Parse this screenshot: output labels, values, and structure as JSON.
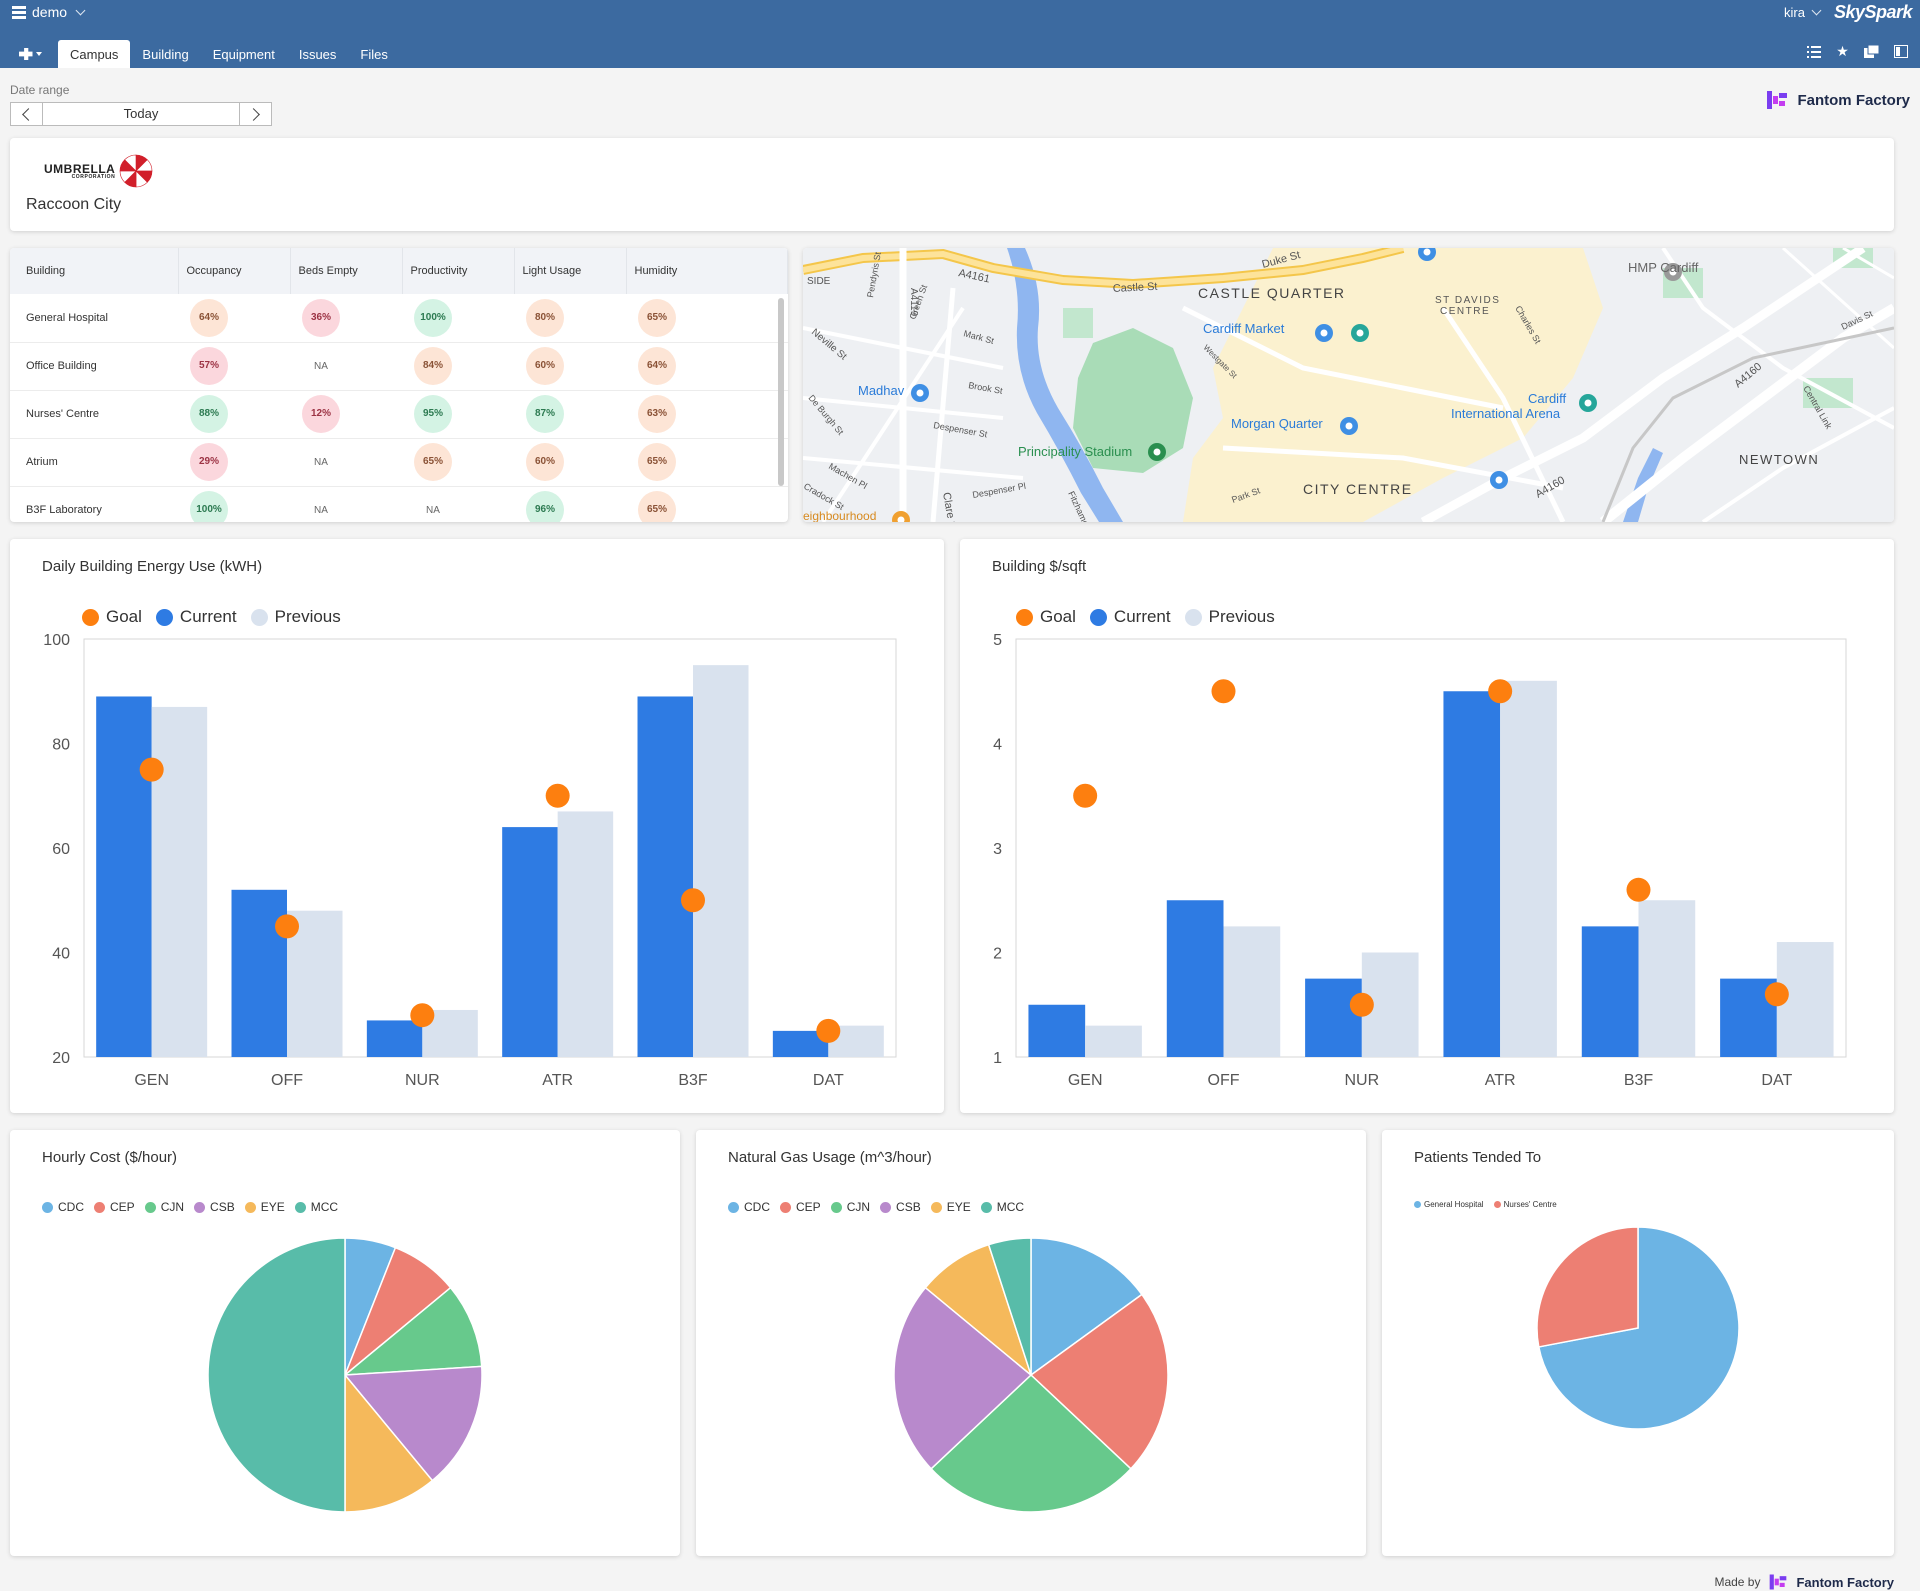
{
  "topbar": {
    "project": "demo",
    "user": "kira",
    "brand": "SkySpark",
    "tabs": [
      "Campus",
      "Building",
      "Equipment",
      "Issues",
      "Files"
    ]
  },
  "date_range": {
    "label": "Date range",
    "value": "Today"
  },
  "fantom_logo": "Fantom Factory",
  "header": {
    "company": "UMBRELLA",
    "company_sub": "CORPORATION",
    "site": "Raccoon City"
  },
  "table": {
    "columns": [
      "Building",
      "Occupancy",
      "Beds Empty",
      "Productivity",
      "Light Usage",
      "Humidity"
    ],
    "rows": [
      {
        "name": "General Hospital",
        "cells": [
          {
            "v": "64%",
            "s": "mid"
          },
          {
            "v": "36%",
            "s": "bad"
          },
          {
            "v": "100%",
            "s": "ok"
          },
          {
            "v": "80%",
            "s": "mid"
          },
          {
            "v": "65%",
            "s": "mid"
          }
        ]
      },
      {
        "name": "Office Building",
        "cells": [
          {
            "v": "57%",
            "s": "bad"
          },
          {
            "v": "NA",
            "s": "na"
          },
          {
            "v": "84%",
            "s": "mid"
          },
          {
            "v": "60%",
            "s": "mid"
          },
          {
            "v": "64%",
            "s": "mid"
          }
        ]
      },
      {
        "name": "Nurses' Centre",
        "cells": [
          {
            "v": "88%",
            "s": "ok"
          },
          {
            "v": "12%",
            "s": "bad"
          },
          {
            "v": "95%",
            "s": "ok"
          },
          {
            "v": "87%",
            "s": "ok"
          },
          {
            "v": "63%",
            "s": "mid"
          }
        ]
      },
      {
        "name": "Atrium",
        "cells": [
          {
            "v": "29%",
            "s": "bad"
          },
          {
            "v": "NA",
            "s": "na"
          },
          {
            "v": "65%",
            "s": "mid"
          },
          {
            "v": "60%",
            "s": "mid"
          },
          {
            "v": "65%",
            "s": "mid"
          }
        ]
      },
      {
        "name": "B3F Laboratory",
        "cells": [
          {
            "v": "100%",
            "s": "ok"
          },
          {
            "v": "NA",
            "s": "na"
          },
          {
            "v": "NA",
            "s": "na"
          },
          {
            "v": "96%",
            "s": "ok"
          },
          {
            "v": "65%",
            "s": "mid"
          }
        ]
      }
    ]
  },
  "map": {
    "labels": [
      "Castle St",
      "Duke St",
      "A4161",
      "A4119",
      "CASTLE QUARTER",
      "Cardiff Market",
      "ST DAVIDS",
      "CENTRE",
      "HMP Cardiff",
      "Madhav",
      "Morgan Quarter",
      "Cardiff",
      "International Arena",
      "Principality Stadium",
      "CITY CENTRE",
      "NEWTOWN",
      "A4160",
      "A4160",
      "Neville St",
      "Mark St",
      "Brook St",
      "Despenser St",
      "Westgate St",
      "Central Link",
      "Clare St",
      "De Burgh St",
      "Machen Pl",
      "Cradock St",
      "Despenser Pl",
      "Fitzhamon",
      "Park St",
      "Charles St",
      "Davis St",
      "Green St",
      "Pendyris St",
      "SIDE",
      "eighbourhood"
    ]
  },
  "colors": {
    "goal": "#fd7f0f",
    "current": "#2e7be3",
    "previous": "#d9e2ee",
    "pie": {
      "CDC": "#6cb4e4",
      "CEP": "#ed7f73",
      "CJN": "#67c98c",
      "CSB": "#b889cc",
      "EYE": "#f5b95b",
      "MCC": "#58bca9"
    }
  },
  "icons": [
    "menu-icon",
    "chevron-down-icon",
    "app-menu-icon",
    "list-icon",
    "star-icon",
    "windows-icon",
    "sidebar-icon",
    "chevron-left-icon",
    "chevron-right-icon"
  ],
  "chart_data": [
    {
      "id": "energy",
      "type": "bar",
      "title": "Daily Building Energy Use (kWH)",
      "legend": [
        "Goal",
        "Current",
        "Previous"
      ],
      "legend_placement": "top-left",
      "categories": [
        "GEN",
        "OFF",
        "NUR",
        "ATR",
        "B3F",
        "DAT"
      ],
      "ylim": [
        20,
        100
      ],
      "yticks": [
        20,
        40,
        60,
        80,
        100
      ],
      "series": [
        {
          "name": "Current",
          "values": [
            89,
            52,
            27,
            64,
            89,
            25
          ]
        },
        {
          "name": "Previous",
          "values": [
            87,
            48,
            29,
            67,
            95,
            26
          ]
        },
        {
          "name": "Goal",
          "values": [
            75,
            45,
            28,
            70,
            50,
            25
          ]
        }
      ]
    },
    {
      "id": "sqft",
      "type": "bar",
      "title": "Building $/sqft",
      "legend": [
        "Goal",
        "Current",
        "Previous"
      ],
      "legend_placement": "top-left",
      "categories": [
        "GEN",
        "OFF",
        "NUR",
        "ATR",
        "B3F",
        "DAT"
      ],
      "ylim": [
        1,
        5
      ],
      "yticks": [
        1,
        2,
        3,
        4,
        5
      ],
      "series": [
        {
          "name": "Current",
          "values": [
            1.5,
            2.5,
            1.75,
            4.5,
            2.25,
            1.75
          ]
        },
        {
          "name": "Previous",
          "values": [
            1.3,
            2.25,
            2.0,
            4.6,
            2.5,
            2.1
          ]
        },
        {
          "name": "Goal",
          "values": [
            3.5,
            4.5,
            1.5,
            4.5,
            2.6,
            1.6
          ]
        }
      ]
    },
    {
      "id": "cost",
      "type": "pie",
      "title": "Hourly Cost ($/hour)",
      "labels": [
        "CDC",
        "CEP",
        "CJN",
        "CSB",
        "EYE",
        "MCC"
      ],
      "values": [
        6,
        8,
        10,
        15,
        11,
        50
      ]
    },
    {
      "id": "gas",
      "type": "pie",
      "title": "Natural Gas Usage (m^3/hour)",
      "labels": [
        "CDC",
        "CEP",
        "CJN",
        "CSB",
        "EYE",
        "MCC"
      ],
      "values": [
        15,
        22,
        26,
        23,
        9,
        5
      ]
    },
    {
      "id": "patients",
      "type": "pie",
      "title": "Patients Tended To",
      "labels": [
        "General Hospital",
        "Nurses' Centre"
      ],
      "values": [
        72,
        28
      ]
    }
  ],
  "footer": {
    "made_by": "Made by",
    "logo": "Fantom Factory"
  }
}
